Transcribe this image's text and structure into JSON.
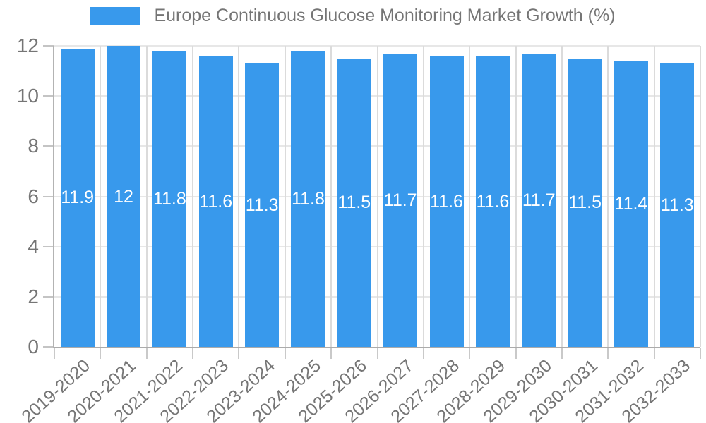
{
  "chart_data": {
    "type": "bar",
    "title": "Europe Continuous Glucose Monitoring Market Growth (%)",
    "legend_position": "top",
    "grid": true,
    "xlabel": "",
    "ylabel": "",
    "ylim": [
      0,
      12
    ],
    "y_ticks": [
      0,
      2,
      4,
      6,
      8,
      10,
      12
    ],
    "categories": [
      "2019-2020",
      "2020-2021",
      "2021-2022",
      "2022-2023",
      "2023-2024",
      "2024-2025",
      "2025-2026",
      "2026-2027",
      "2027-2028",
      "2028-2029",
      "2029-2030",
      "2030-2031",
      "2031-2032",
      "2032-2033"
    ],
    "values": [
      11.9,
      12,
      11.8,
      11.6,
      11.3,
      11.8,
      11.5,
      11.7,
      11.6,
      11.6,
      11.7,
      11.5,
      11.4,
      11.3
    ],
    "value_labels": [
      "11.9",
      "12",
      "11.8",
      "11.6",
      "11.3",
      "11.8",
      "11.5",
      "11.7",
      "11.6",
      "11.6",
      "11.7",
      "11.5",
      "11.4",
      "11.3"
    ],
    "colors": {
      "bar": "#3899ec",
      "axis_text": "#757575",
      "value_label": "#ffffff",
      "h_gridline": "#e7e7e7",
      "v_gridline": "#dbdbdb",
      "axis_line": "#b0b0b0"
    }
  }
}
